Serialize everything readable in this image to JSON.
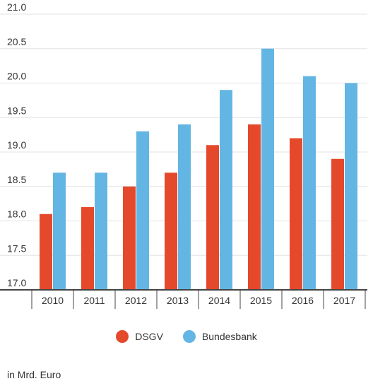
{
  "chart_data": {
    "type": "bar",
    "categories": [
      "2010",
      "2011",
      "2012",
      "2013",
      "2014",
      "2015",
      "2016",
      "2017"
    ],
    "series": [
      {
        "name": "DSGV",
        "values": [
          18.1,
          18.2,
          18.5,
          18.7,
          19.1,
          19.4,
          19.2,
          18.9
        ],
        "color": "#e5492b"
      },
      {
        "name": "Bundesbank",
        "values": [
          18.7,
          18.7,
          19.3,
          19.4,
          19.9,
          20.5,
          20.1,
          20.0
        ],
        "color": "#63b6e3"
      }
    ],
    "ylim": [
      17.0,
      21.0
    ],
    "yticks": [
      "17.0",
      "17.5",
      "18.0",
      "18.5",
      "19.0",
      "19.5",
      "20.0",
      "20.5",
      "21.0"
    ],
    "grid": true,
    "legend_position": "bottom-center",
    "unit_note": "in Mrd. Euro"
  }
}
